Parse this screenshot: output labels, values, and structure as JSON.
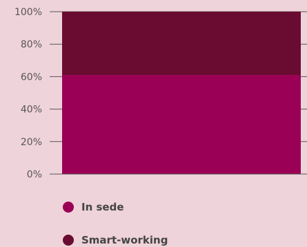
{
  "chart_data": {
    "type": "bar",
    "stacked": true,
    "categories": [
      ""
    ],
    "series": [
      {
        "name": "In sede",
        "values": [
          61
        ],
        "color": "#9a0055"
      },
      {
        "name": "Smart-working",
        "values": [
          39
        ],
        "color": "#6a0c32"
      }
    ],
    "ylim": [
      0,
      100
    ],
    "yticks": [
      "0%",
      "20%",
      "40%",
      "60%",
      "80%",
      "100%"
    ],
    "grid": true,
    "legend_position": "bottom-left",
    "background": "#efd3da",
    "axis_color": "#555555"
  }
}
